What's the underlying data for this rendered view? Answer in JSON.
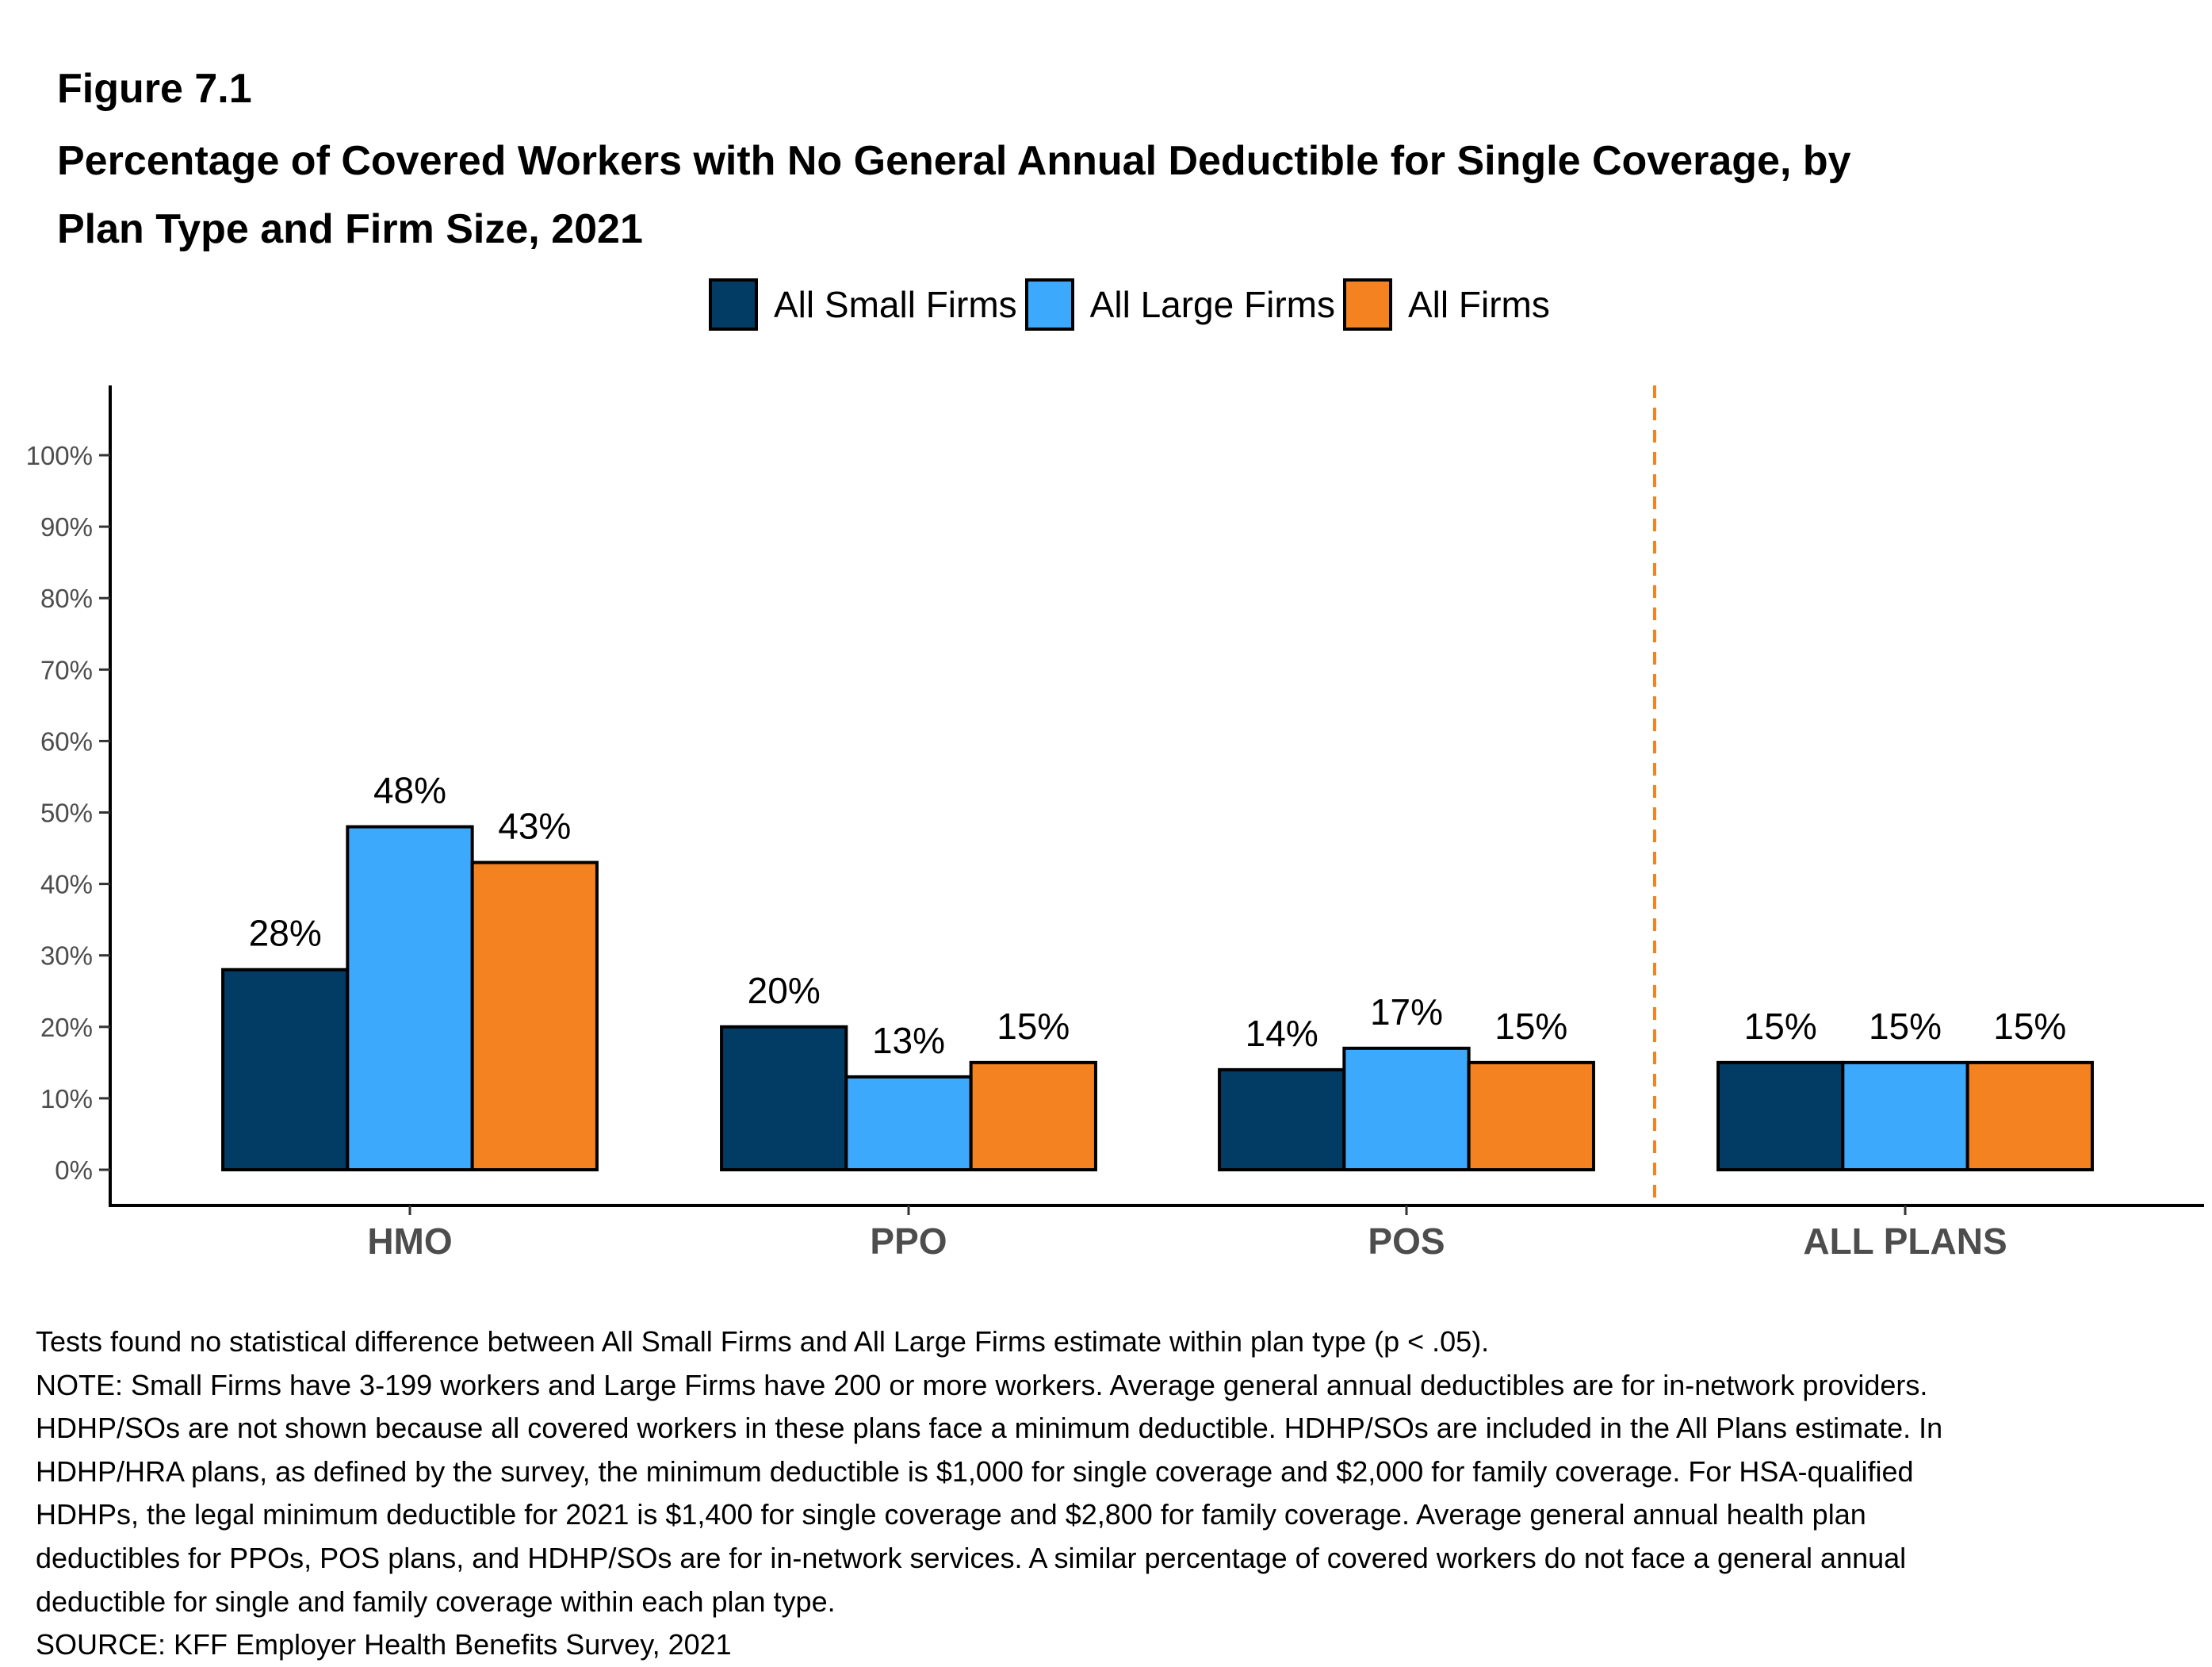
{
  "figure_label": "Figure 7.1",
  "title_lines": [
    "Percentage of Covered Workers with No General Annual Deductible for Single Coverage, by",
    "Plan Type and Firm Size, 2021"
  ],
  "legend": [
    {
      "label": "All Small Firms",
      "color": "#023B63"
    },
    {
      "label": "All Large Firms",
      "color": "#3DA9FC"
    },
    {
      "label": "All Firms",
      "color": "#F58220"
    }
  ],
  "chart_data": {
    "type": "bar",
    "title": "Percentage of Covered Workers with No General Annual Deductible for Single Coverage, by Plan Type and Firm Size, 2021",
    "xlabel": "",
    "ylabel": "",
    "categories": [
      "HMO",
      "PPO",
      "POS",
      "ALL PLANS"
    ],
    "series": [
      {
        "name": "All Small Firms",
        "color": "#023B63",
        "values": [
          28,
          20,
          14,
          15
        ],
        "labels": [
          "28%",
          "20%",
          "14%",
          "15%"
        ]
      },
      {
        "name": "All Large Firms",
        "color": "#3DA9FC",
        "values": [
          48,
          13,
          17,
          15
        ],
        "labels": [
          "48%",
          "13%",
          "17%",
          "15%"
        ]
      },
      {
        "name": "All Firms",
        "color": "#F58220",
        "values": [
          43,
          15,
          15,
          15
        ],
        "labels": [
          "43%",
          "15%",
          "15%",
          "15%"
        ]
      }
    ],
    "ylim": [
      0,
      100
    ],
    "yticks": [
      0,
      10,
      20,
      30,
      40,
      50,
      60,
      70,
      80,
      90,
      100
    ],
    "ytick_labels": [
      "0%",
      "10%",
      "20%",
      "30%",
      "40%",
      "50%",
      "60%",
      "70%",
      "80%",
      "90%",
      "100%"
    ],
    "grid": false,
    "legend_position": "top",
    "separator": {
      "type": "dashed-vertical-line",
      "between": [
        "POS",
        "ALL PLANS"
      ],
      "color": "#F58220"
    }
  },
  "footnotes": [
    "Tests found no statistical difference between All Small Firms and All Large Firms estimate within plan type (p < .05).",
    "NOTE: Small Firms have 3-199 workers and Large Firms have 200 or more workers. Average general annual deductibles are for in-network providers.",
    "HDHP/SOs are not shown because all covered workers in these plans face a minimum deductible. HDHP/SOs are included in the All Plans estimate. In",
    "HDHP/HRA plans, as defined by the survey, the minimum deductible is $1,000 for single coverage and $2,000 for family coverage. For HSA-qualified",
    "HDHPs, the legal minimum deductible for 2021 is $1,400 for single coverage and $2,800 for family coverage. Average general annual health plan",
    "deductibles for PPOs, POS plans, and HDHP/SOs are for in-network services. A similar percentage of covered workers do not face a general annual",
    "deductible for single and family coverage within each plan type.",
    "SOURCE: KFF Employer Health Benefits Survey, 2021"
  ]
}
